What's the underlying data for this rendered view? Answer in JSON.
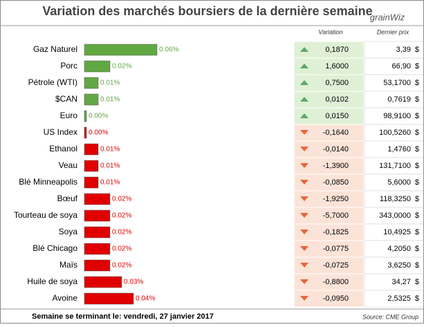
{
  "title": "Variation des marchés boursiers de la dernière semaine",
  "logo": "grainWiz",
  "columns": {
    "variation": "Variation",
    "price": "Dernier prix"
  },
  "currency": "$",
  "chart_data": {
    "type": "bar",
    "categories": [
      "Gaz Naturel",
      "Porc",
      "Pétrole (WTI)",
      "$CAN",
      "Euro",
      "US Index",
      "Ethanol",
      "Veau",
      "Blé Minneapolis",
      "Bœuf",
      "Tourteau de soya",
      "Soya",
      "Blé Chicago",
      "Maïs",
      "Huile de soya",
      "Avoine"
    ],
    "values": [
      0.06,
      0.02,
      0.01,
      0.01,
      0.0,
      0.0,
      0.01,
      0.01,
      0.01,
      0.02,
      0.02,
      0.02,
      0.02,
      0.02,
      0.03,
      0.04
    ],
    "value_labels": [
      "0.06%",
      "0.02%",
      "0.01%",
      "0.01%",
      "0.00%",
      "0.00%",
      "0.01%",
      "0.01%",
      "0.01%",
      "0.02%",
      "0.02%",
      "0.02%",
      "0.02%",
      "0.02%",
      "0.03%",
      "0.04%"
    ],
    "colors": [
      "#62a842",
      "#62a842",
      "#62a842",
      "#62a842",
      "#62a842",
      "#e00000",
      "#e00000",
      "#e00000",
      "#e00000",
      "#e00000",
      "#e00000",
      "#e00000",
      "#e00000",
      "#e00000",
      "#e00000",
      "#e00000"
    ]
  },
  "table": {
    "rows": [
      [
        "0,1870",
        "3,39"
      ],
      [
        "1,6000",
        "66,90"
      ],
      [
        "0,7500",
        "53,1700"
      ],
      [
        "0,0102",
        "0,7619"
      ],
      [
        "0,0150",
        "98,9100"
      ],
      [
        "-0,1640",
        "100,5260"
      ],
      [
        "-0,0140",
        "1,4760"
      ],
      [
        "-1,3900",
        "131,7100"
      ],
      [
        "-0,0850",
        "5,6000"
      ],
      [
        "-1,9250",
        "118,3250"
      ],
      [
        "-5,7000",
        "343,0000"
      ],
      [
        "-0,1825",
        "10,4925"
      ],
      [
        "-0,0775",
        "4,2050"
      ],
      [
        "-0,0725",
        "3,6250"
      ],
      [
        "-0,8800",
        "34,27"
      ],
      [
        "-0,0950",
        "2,5325"
      ]
    ]
  },
  "footer": "Semaine se terminant le: vendredi, 27 janvier 2017",
  "source": "Source: CME Group"
}
